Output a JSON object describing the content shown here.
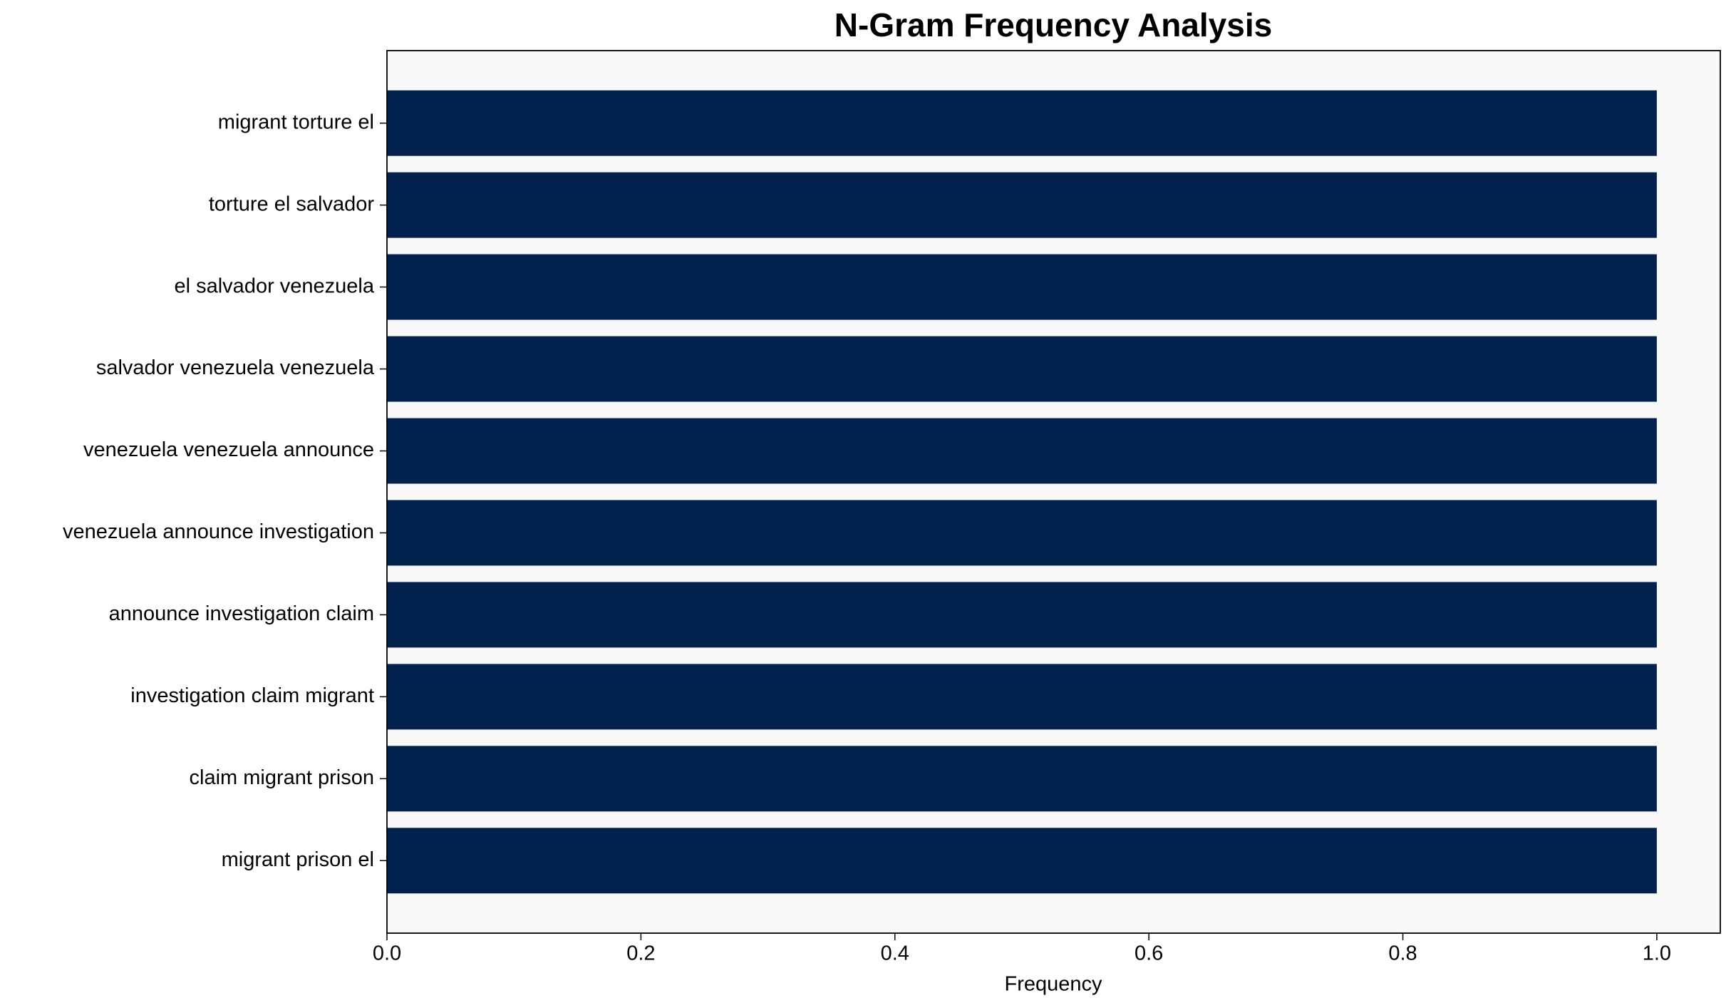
{
  "chart_data": {
    "type": "bar",
    "orientation": "horizontal",
    "title": "N-Gram Frequency Analysis",
    "x_label": "Frequency",
    "categories": [
      "migrant torture el",
      "torture el salvador",
      "el salvador venezuela",
      "salvador venezuela venezuela",
      "venezuela venezuela announce",
      "venezuela announce investigation",
      "announce investigation claim",
      "investigation claim migrant",
      "claim migrant prison",
      "migrant prison el"
    ],
    "values": [
      1,
      1,
      1,
      1,
      1,
      1,
      1,
      1,
      1,
      1
    ],
    "color": "#03214d",
    "xlim": [
      0,
      1.05
    ],
    "xticks": [
      {
        "value": 0,
        "label": "0.0"
      },
      0.2,
      0.4,
      0.6,
      0.8,
      {
        "value": 1,
        "label": "1.0"
      }
    ],
    "grid": false
  }
}
